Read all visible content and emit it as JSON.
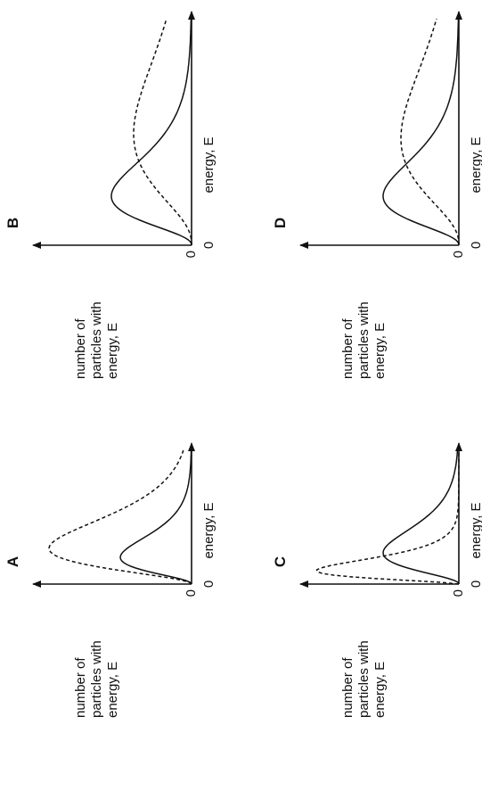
{
  "panels": [
    {
      "label": "A",
      "y_axis_label": [
        "number of",
        "particles with",
        "energy, E"
      ],
      "x_axis_label": "energy, E",
      "y_origin": "0",
      "x_origin": "0"
    },
    {
      "label": "B",
      "y_axis_label": [
        "number of",
        "particles with",
        "energy, E"
      ],
      "x_axis_label": "energy, E",
      "y_origin": "0",
      "x_origin": "0"
    },
    {
      "label": "C",
      "y_axis_label": [
        "number of",
        "particles with",
        "energy, E"
      ],
      "x_axis_label": "energy, E",
      "y_origin": "0",
      "x_origin": "0"
    },
    {
      "label": "D",
      "y_axis_label": [
        "number of",
        "particles with",
        "energy, E"
      ],
      "x_axis_label": "energy, E",
      "y_origin": "0",
      "x_origin": "0"
    }
  ]
}
